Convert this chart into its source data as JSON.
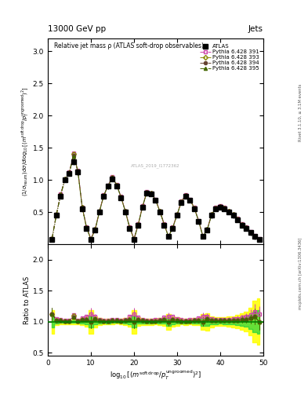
{
  "title_top": "13000 GeV pp",
  "title_top_right": "Jets",
  "plot_title": "Relative jet mass ρ (ATLAS soft-drop observables)",
  "right_label_top": "Rivet 3.1.10, ≥ 3.1M events",
  "right_label_bottom": "mcplots.cern.ch [arXiv:1306.3436]",
  "watermark": "ATLAS_2019_I1772362",
  "ylabel_ratio": "Ratio to ATLAS",
  "xlim": [
    0,
    50
  ],
  "ylim_main": [
    0,
    3.2
  ],
  "ylim_ratio": [
    0.45,
    2.25
  ],
  "yticks_main": [
    0.5,
    1.0,
    1.5,
    2.0,
    2.5,
    3.0
  ],
  "yticks_ratio": [
    0.5,
    1.0,
    1.5,
    2.0
  ],
  "xticks": [
    0,
    10,
    20,
    30,
    40,
    50
  ],
  "atlas_color": "#000000",
  "py391_color": "#cc44aa",
  "py393_color": "#888800",
  "py394_color": "#664433",
  "py395_color": "#446600",
  "band_yellow": "#ffff00",
  "band_green": "#00cc44",
  "x": [
    1,
    2,
    3,
    4,
    5,
    6,
    7,
    8,
    9,
    10,
    11,
    12,
    13,
    14,
    15,
    16,
    17,
    18,
    19,
    20,
    21,
    22,
    23,
    24,
    25,
    26,
    27,
    28,
    29,
    30,
    31,
    32,
    33,
    34,
    35,
    36,
    37,
    38,
    39,
    40,
    41,
    42,
    43,
    44,
    45,
    46,
    47,
    48,
    49
  ],
  "atlas_y": [
    0.08,
    0.45,
    0.75,
    1.0,
    1.1,
    1.28,
    1.12,
    0.55,
    0.25,
    0.08,
    0.22,
    0.5,
    0.75,
    0.9,
    1.02,
    0.9,
    0.72,
    0.5,
    0.25,
    0.08,
    0.3,
    0.58,
    0.8,
    0.78,
    0.68,
    0.5,
    0.3,
    0.12,
    0.25,
    0.45,
    0.65,
    0.75,
    0.68,
    0.55,
    0.35,
    0.12,
    0.22,
    0.45,
    0.55,
    0.58,
    0.55,
    0.5,
    0.45,
    0.38,
    0.3,
    0.25,
    0.18,
    0.12,
    0.08
  ],
  "py391_y": [
    0.09,
    0.47,
    0.78,
    1.02,
    1.12,
    1.42,
    1.15,
    0.58,
    0.27,
    0.09,
    0.24,
    0.52,
    0.77,
    0.92,
    1.05,
    0.93,
    0.74,
    0.52,
    0.27,
    0.09,
    0.32,
    0.6,
    0.82,
    0.8,
    0.7,
    0.52,
    0.32,
    0.13,
    0.27,
    0.47,
    0.67,
    0.77,
    0.7,
    0.57,
    0.37,
    0.13,
    0.24,
    0.47,
    0.57,
    0.6,
    0.57,
    0.52,
    0.47,
    0.4,
    0.32,
    0.27,
    0.2,
    0.14,
    0.09
  ],
  "py393_y": [
    0.09,
    0.46,
    0.77,
    1.01,
    1.11,
    1.4,
    1.13,
    0.57,
    0.26,
    0.08,
    0.23,
    0.51,
    0.76,
    0.91,
    1.04,
    0.92,
    0.73,
    0.51,
    0.26,
    0.08,
    0.31,
    0.59,
    0.81,
    0.79,
    0.69,
    0.51,
    0.31,
    0.12,
    0.26,
    0.46,
    0.66,
    0.76,
    0.69,
    0.56,
    0.36,
    0.12,
    0.23,
    0.46,
    0.56,
    0.59,
    0.56,
    0.51,
    0.46,
    0.39,
    0.31,
    0.26,
    0.19,
    0.13,
    0.08
  ],
  "py394_y": [
    0.09,
    0.46,
    0.77,
    1.01,
    1.11,
    1.38,
    1.13,
    0.57,
    0.26,
    0.08,
    0.23,
    0.51,
    0.76,
    0.91,
    1.04,
    0.92,
    0.73,
    0.51,
    0.26,
    0.08,
    0.31,
    0.59,
    0.81,
    0.79,
    0.69,
    0.51,
    0.31,
    0.12,
    0.26,
    0.46,
    0.66,
    0.76,
    0.69,
    0.56,
    0.36,
    0.12,
    0.23,
    0.46,
    0.56,
    0.59,
    0.56,
    0.51,
    0.46,
    0.39,
    0.31,
    0.26,
    0.19,
    0.13,
    0.08
  ],
  "py395_y": [
    0.09,
    0.46,
    0.77,
    1.01,
    1.11,
    1.37,
    1.13,
    0.57,
    0.26,
    0.08,
    0.23,
    0.51,
    0.76,
    0.91,
    1.04,
    0.92,
    0.73,
    0.51,
    0.26,
    0.08,
    0.31,
    0.59,
    0.81,
    0.79,
    0.69,
    0.51,
    0.31,
    0.12,
    0.26,
    0.46,
    0.66,
    0.76,
    0.69,
    0.56,
    0.36,
    0.12,
    0.23,
    0.46,
    0.56,
    0.59,
    0.56,
    0.51,
    0.46,
    0.39,
    0.31,
    0.26,
    0.19,
    0.13,
    0.08
  ],
  "atlas_err": [
    0.015,
    0.025,
    0.03,
    0.04,
    0.04,
    0.05,
    0.04,
    0.03,
    0.02,
    0.015,
    0.02,
    0.03,
    0.03,
    0.04,
    0.04,
    0.03,
    0.03,
    0.03,
    0.02,
    0.015,
    0.02,
    0.03,
    0.04,
    0.04,
    0.03,
    0.03,
    0.02,
    0.015,
    0.02,
    0.03,
    0.03,
    0.04,
    0.03,
    0.03,
    0.02,
    0.015,
    0.03,
    0.04,
    0.04,
    0.04,
    0.04,
    0.04,
    0.04,
    0.04,
    0.04,
    0.04,
    0.04,
    0.04,
    0.03
  ],
  "py391_err": [
    0.008,
    0.01,
    0.01,
    0.015,
    0.015,
    0.02,
    0.015,
    0.01,
    0.008,
    0.008,
    0.008,
    0.01,
    0.01,
    0.015,
    0.015,
    0.01,
    0.01,
    0.01,
    0.008,
    0.008,
    0.008,
    0.01,
    0.015,
    0.015,
    0.01,
    0.01,
    0.008,
    0.008,
    0.008,
    0.01,
    0.01,
    0.015,
    0.01,
    0.01,
    0.008,
    0.008,
    0.01,
    0.015,
    0.015,
    0.015,
    0.015,
    0.015,
    0.015,
    0.015,
    0.015,
    0.015,
    0.015,
    0.015,
    0.01
  ],
  "py393_err": [
    0.008,
    0.01,
    0.01,
    0.015,
    0.015,
    0.02,
    0.015,
    0.01,
    0.008,
    0.008,
    0.008,
    0.01,
    0.01,
    0.015,
    0.015,
    0.01,
    0.01,
    0.01,
    0.008,
    0.008,
    0.008,
    0.01,
    0.015,
    0.015,
    0.01,
    0.01,
    0.008,
    0.008,
    0.008,
    0.01,
    0.01,
    0.015,
    0.01,
    0.01,
    0.008,
    0.008,
    0.01,
    0.015,
    0.015,
    0.015,
    0.015,
    0.015,
    0.015,
    0.015,
    0.015,
    0.015,
    0.015,
    0.015,
    0.01
  ],
  "py394_err": [
    0.008,
    0.01,
    0.01,
    0.015,
    0.015,
    0.02,
    0.015,
    0.01,
    0.008,
    0.008,
    0.008,
    0.01,
    0.01,
    0.015,
    0.015,
    0.01,
    0.01,
    0.01,
    0.008,
    0.008,
    0.008,
    0.01,
    0.015,
    0.015,
    0.01,
    0.01,
    0.008,
    0.008,
    0.008,
    0.01,
    0.01,
    0.015,
    0.01,
    0.01,
    0.008,
    0.008,
    0.01,
    0.015,
    0.015,
    0.015,
    0.015,
    0.015,
    0.015,
    0.015,
    0.015,
    0.015,
    0.015,
    0.015,
    0.01
  ],
  "py395_err": [
    0.008,
    0.01,
    0.01,
    0.015,
    0.015,
    0.02,
    0.015,
    0.01,
    0.008,
    0.008,
    0.008,
    0.01,
    0.01,
    0.015,
    0.015,
    0.01,
    0.01,
    0.01,
    0.008,
    0.008,
    0.008,
    0.01,
    0.015,
    0.015,
    0.01,
    0.01,
    0.008,
    0.008,
    0.008,
    0.01,
    0.01,
    0.015,
    0.01,
    0.01,
    0.008,
    0.008,
    0.01,
    0.015,
    0.015,
    0.015,
    0.015,
    0.015,
    0.015,
    0.015,
    0.015,
    0.015,
    0.015,
    0.015,
    0.01
  ]
}
